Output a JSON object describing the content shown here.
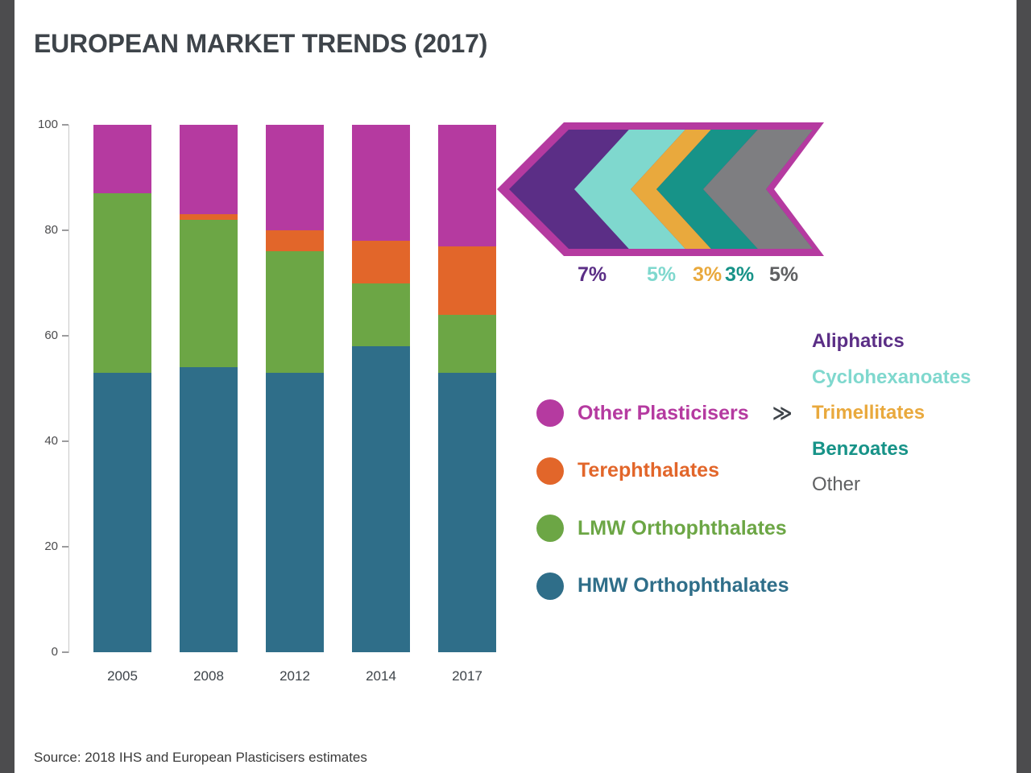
{
  "title": "EUROPEAN MARKET TRENDS (2017)",
  "source": "Source: 2018 IHS and European Plasticisers estimates",
  "palette": {
    "magenta": "#b53aa0",
    "orange": "#e2662a",
    "green": "#6ca645",
    "blue": "#2f6e89",
    "purple": "#5b2e86",
    "cyan": "#7fd8ce",
    "gold": "#e9a93d",
    "teal": "#179388",
    "gray_band": "#7e7e81"
  },
  "chart_data": {
    "type": "bar",
    "stacked": true,
    "title": "EUROPEAN MARKET TRENDS (2017)",
    "categories": [
      "2005",
      "2008",
      "2012",
      "2014",
      "2017"
    ],
    "series": [
      {
        "name": "HMW Orthophthalates",
        "color": "#2f6e89",
        "values": [
          53,
          54,
          53,
          58,
          53
        ]
      },
      {
        "name": "LMW Orthophthalates",
        "color": "#6ca645",
        "values": [
          34,
          28,
          23,
          12,
          11
        ]
      },
      {
        "name": "Terephthalates",
        "color": "#e2662a",
        "values": [
          0,
          1,
          4,
          8,
          13
        ]
      },
      {
        "name": "Other Plasticisers",
        "color": "#b53aa0",
        "values": [
          13,
          17,
          20,
          22,
          23
        ]
      }
    ],
    "ylim": [
      0,
      100
    ],
    "yticks": [
      0,
      20,
      40,
      60,
      80,
      100
    ],
    "grid": false,
    "legend_position": "right"
  },
  "legend": {
    "arrow_symbol": "≫",
    "items": [
      {
        "label": "Other Plasticisers",
        "color": "#b53aa0"
      },
      {
        "label": "Terephthalates",
        "color": "#e2662a"
      },
      {
        "label": "LMW Orthophthalates",
        "color": "#6ca645"
      },
      {
        "label": "HMW Orthophthalates",
        "color": "#2f6e89"
      }
    ],
    "breakdown": [
      {
        "label": "Aliphatics",
        "percent": "7%",
        "color": "#5b2e86"
      },
      {
        "label": "Cyclohexanoates",
        "percent": "5%",
        "color": "#7fd8ce"
      },
      {
        "label": "Trimellitates",
        "percent": "3%",
        "color": "#e9a93d"
      },
      {
        "label": "Benzoates",
        "percent": "3%",
        "color": "#179388"
      },
      {
        "label": "Other",
        "percent": "5%",
        "color": "#5f6062"
      }
    ]
  }
}
